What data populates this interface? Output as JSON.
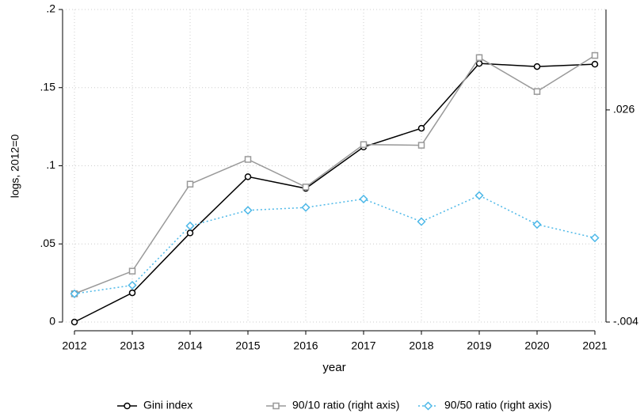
{
  "chart_data": {
    "type": "line",
    "y_label": "logs, 2012=0",
    "x_label": "year",
    "x": [
      2012,
      2013,
      2014,
      2015,
      2016,
      2017,
      2018,
      2019,
      2020,
      2021
    ],
    "xlim": [
      2012,
      2021
    ],
    "xticks": [
      2012,
      2013,
      2014,
      2015,
      2016,
      2017,
      2018,
      2019,
      2020,
      2021
    ],
    "ylim": [
      0,
      0.2
    ],
    "yticks": [
      0,
      {
        "value": 0.05,
        "label": ".05"
      },
      {
        "value": 0.1,
        "label": ".1"
      },
      {
        "value": 0.15,
        "label": ".15"
      },
      {
        "value": 0.2,
        "label": ".2"
      }
    ],
    "y2lim": [
      -0.004,
      0.0402
    ],
    "y2ticks": [
      {
        "value": -0.004,
        "label": "-.004"
      },
      {
        "value": 0.026,
        "label": ".026"
      }
    ],
    "grid": true,
    "legend": "bottom",
    "series": [
      {
        "name": "Gini index",
        "color": "#000000",
        "marker": "circle",
        "dash": false,
        "values": [
          0,
          0.0187,
          0.057,
          0.093,
          0.0855,
          0.112,
          0.124,
          0.1655,
          0.1635,
          0.165
        ]
      },
      {
        "name": "90/10 ratio (right axis)",
        "color": "#999999",
        "marker": "square",
        "dash": false,
        "axis": "y2",
        "values": [
          0.0,
          0.0032,
          0.0155,
          0.019,
          0.0151,
          0.0211,
          0.021,
          0.0334,
          0.0286,
          0.0337
        ]
      },
      {
        "name": "90/50 ratio (right axis)",
        "color": "#4db8e8",
        "marker": "diamond",
        "dash": true,
        "axis": "y2",
        "values": [
          0.0,
          0.0012,
          0.0096,
          0.0118,
          0.0122,
          0.0134,
          0.0102,
          0.0139,
          0.0098,
          0.0079
        ]
      }
    ]
  }
}
